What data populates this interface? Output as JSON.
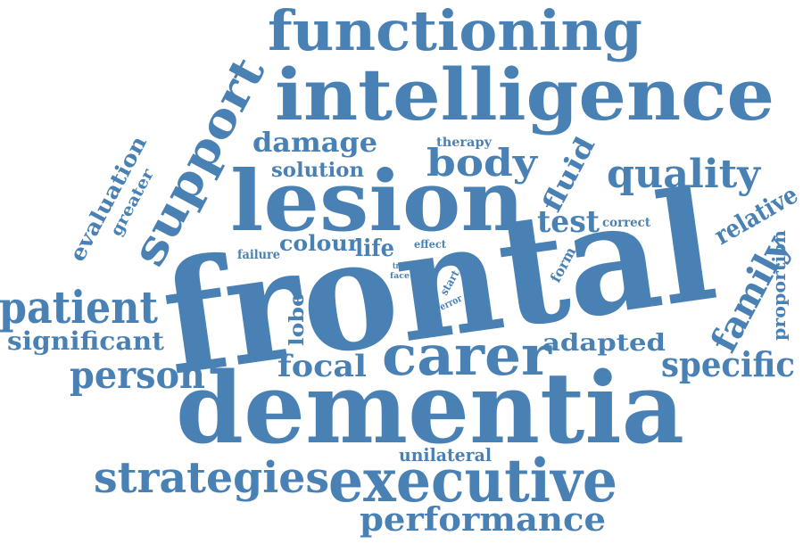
{
  "cloud": {
    "color": "#4a81b4",
    "words": {
      "functioning": "functioning",
      "intelligence": "intelligence",
      "support": "support",
      "damage": "damage",
      "therapy": "therapy",
      "body": "body",
      "quality": "quality",
      "solution": "solution",
      "evaluation": "evaluation",
      "greater": "greater",
      "lesion": "lesion",
      "fluid": "fluid",
      "relative": "relative",
      "test": "test",
      "correct": "correct",
      "frontal": "frontal",
      "colour": "colour",
      "life": "life",
      "effect": "effect",
      "failure": "failure",
      "trial": "trial",
      "face": "face",
      "form": "form",
      "start": "start",
      "error": "error",
      "family": "family",
      "proportion": "proportion",
      "patient": "patient",
      "significant": "significant",
      "lobe": "lobe",
      "adapted": "adapted",
      "person": "person",
      "focal": "focal",
      "carer": "carer",
      "specific": "specific",
      "dementia": "dementia",
      "unilateral": "unilateral",
      "strategies": "strategies",
      "executive": "executive",
      "performance": "performance"
    }
  }
}
